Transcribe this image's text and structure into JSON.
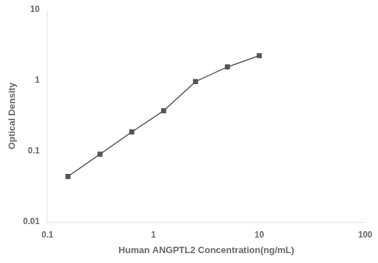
{
  "chart_data": {
    "type": "line",
    "x": [
      0.156,
      0.313,
      0.625,
      1.25,
      2.5,
      5.0,
      10.0
    ],
    "values": [
      0.044,
      0.091,
      0.188,
      0.375,
      0.97,
      1.56,
      2.25
    ],
    "xlabel": "Human ANGPTL2 Concentration(ng/mL)",
    "ylabel": "Optical Density",
    "xlim": [
      0.1,
      100
    ],
    "ylim": [
      0.01,
      10
    ],
    "xticks": [
      0.1,
      1,
      10,
      100
    ],
    "yticks": [
      0.01,
      0.1,
      1,
      10
    ],
    "log": true,
    "grid": false,
    "color": "#555555",
    "marker": "square",
    "line_style": "solid"
  }
}
